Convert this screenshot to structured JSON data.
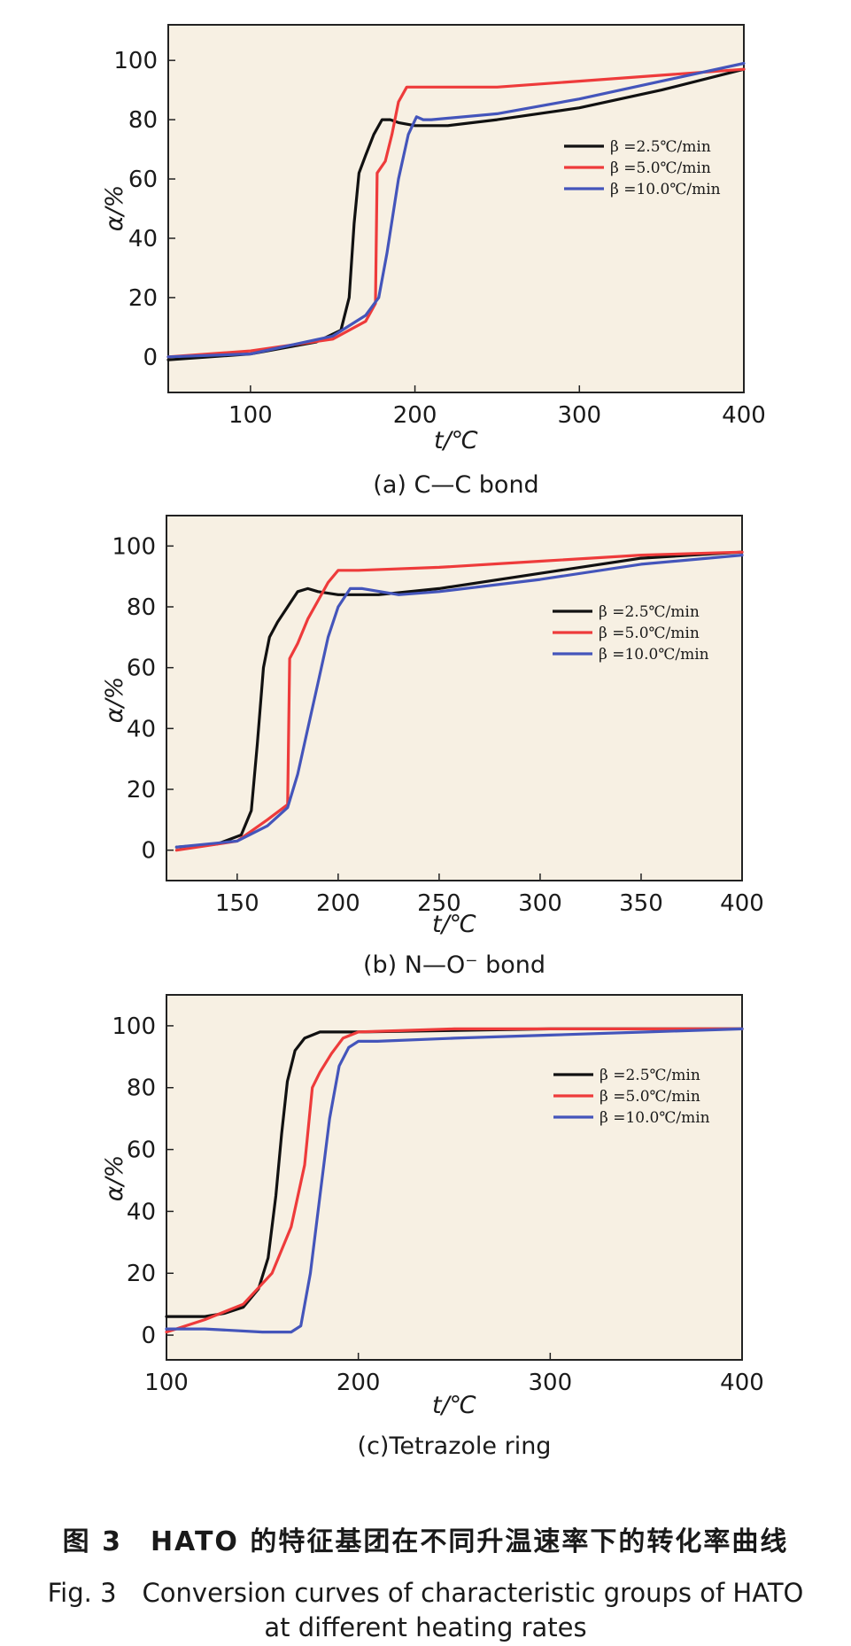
{
  "figure": {
    "caption_cn": "图 3　HATO 的特征基团在不同升温速率下的转化率曲线",
    "caption_en_line1": "Fig. 3　Conversion curves of characteristic groups of HATO",
    "caption_en_line2": "at different heating rates"
  },
  "colors": {
    "black": "#111111",
    "red": "#ee3b3b",
    "blue": "#4455bb",
    "panel_bg": "#f7f0e3"
  },
  "chart_data": [
    {
      "type": "line",
      "subtitle": "(a) C—C bond",
      "xlabel": "t/℃",
      "ylabel": "α/%",
      "xlim": [
        50,
        400
      ],
      "ylim": [
        -12,
        112
      ],
      "xticks": [
        100,
        200,
        300,
        400
      ],
      "yticks": [
        0,
        20,
        40,
        60,
        80,
        100
      ],
      "legend_position": "right",
      "series": [
        {
          "name": "β =2.5℃/min",
          "color": "black",
          "x": [
            50,
            100,
            140,
            155,
            160,
            163,
            166,
            170,
            175,
            180,
            185,
            190,
            200,
            220,
            250,
            300,
            350,
            400
          ],
          "y": [
            -1,
            1,
            5,
            9,
            20,
            45,
            62,
            68,
            75,
            80,
            80,
            79,
            78,
            78,
            80,
            84,
            90,
            97
          ]
        },
        {
          "name": "β =5.0℃/min",
          "color": "red",
          "x": [
            50,
            100,
            150,
            170,
            176,
            177,
            182,
            186,
            190,
            195,
            200,
            210,
            250,
            300,
            350,
            400
          ],
          "y": [
            0,
            2,
            6,
            12,
            18,
            62,
            66,
            75,
            86,
            91,
            91,
            91,
            91,
            93,
            95,
            97
          ]
        },
        {
          "name": "β =10.0℃/min",
          "color": "blue",
          "x": [
            50,
            100,
            150,
            170,
            178,
            183,
            190,
            196,
            201,
            205,
            210,
            250,
            300,
            350,
            400
          ],
          "y": [
            0,
            1,
            7,
            14,
            20,
            35,
            60,
            75,
            81,
            80,
            80,
            82,
            87,
            93,
            99
          ]
        }
      ]
    },
    {
      "type": "line",
      "subtitle": "(b) N—O⁻ bond",
      "xlabel": "t/℃",
      "ylabel": "α/%",
      "xlim": [
        115,
        400
      ],
      "ylim": [
        -10,
        110
      ],
      "xticks": [
        150,
        200,
        250,
        300,
        350,
        400
      ],
      "yticks": [
        0,
        20,
        40,
        60,
        80,
        100
      ],
      "legend_position": "right",
      "series": [
        {
          "name": "β =2.5℃/min",
          "color": "black",
          "x": [
            120,
            140,
            152,
            157,
            160,
            163,
            166,
            170,
            175,
            180,
            185,
            190,
            200,
            220,
            250,
            300,
            350,
            400
          ],
          "y": [
            1,
            2,
            5,
            13,
            35,
            60,
            70,
            75,
            80,
            85,
            86,
            85,
            84,
            84,
            86,
            91,
            96,
            98
          ]
        },
        {
          "name": "β =5.0℃/min",
          "color": "red",
          "x": [
            120,
            150,
            165,
            175,
            176,
            180,
            185,
            190,
            195,
            200,
            210,
            250,
            300,
            350,
            400
          ],
          "y": [
            0,
            3,
            10,
            15,
            63,
            68,
            76,
            82,
            88,
            92,
            92,
            93,
            95,
            97,
            98
          ]
        },
        {
          "name": "β =10.0℃/min",
          "color": "blue",
          "x": [
            120,
            150,
            165,
            175,
            180,
            185,
            190,
            195,
            200,
            206,
            212,
            230,
            250,
            300,
            350,
            400
          ],
          "y": [
            1,
            3,
            8,
            14,
            25,
            40,
            55,
            70,
            80,
            86,
            86,
            84,
            85,
            89,
            94,
            97
          ]
        }
      ]
    },
    {
      "type": "line",
      "subtitle": "(c)Tetrazole ring",
      "xlabel": "t/℃",
      "ylabel": "α/%",
      "xlim": [
        100,
        400
      ],
      "ylim": [
        -8,
        110
      ],
      "xticks": [
        100,
        200,
        300,
        400
      ],
      "yticks": [
        0,
        20,
        40,
        60,
        80,
        100
      ],
      "legend_position": "top-right",
      "series": [
        {
          "name": "β =2.5℃/min",
          "color": "black",
          "x": [
            100,
            120,
            130,
            140,
            148,
            153,
            157,
            160,
            163,
            167,
            172,
            180,
            190,
            200,
            300,
            400
          ],
          "y": [
            6,
            6,
            7,
            9,
            15,
            25,
            45,
            65,
            82,
            92,
            96,
            98,
            98,
            98,
            99,
            99
          ]
        },
        {
          "name": "β =5.0℃/min",
          "color": "red",
          "x": [
            100,
            120,
            140,
            155,
            165,
            172,
            176,
            180,
            186,
            192,
            200,
            250,
            300,
            400
          ],
          "y": [
            1,
            5,
            10,
            20,
            35,
            55,
            80,
            85,
            91,
            96,
            98,
            99,
            99,
            99
          ]
        },
        {
          "name": "β =10.0℃/min",
          "color": "blue",
          "x": [
            100,
            120,
            150,
            165,
            170,
            175,
            180,
            185,
            190,
            195,
            200,
            210,
            250,
            300,
            350,
            400
          ],
          "y": [
            2,
            2,
            1,
            1,
            3,
            20,
            45,
            70,
            87,
            93,
            95,
            95,
            96,
            97,
            98,
            99
          ]
        }
      ]
    }
  ]
}
